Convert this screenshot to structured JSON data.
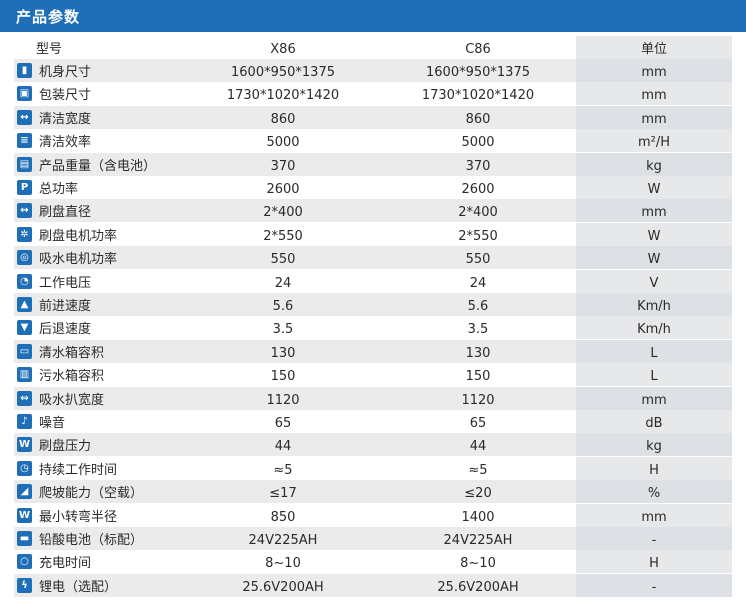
{
  "header": {
    "title": "产品参数"
  },
  "columns": {
    "name": "型号",
    "x86": "X86",
    "c86": "C86",
    "unit": "单位"
  },
  "rows": [
    {
      "icon": "height-icon",
      "glyph": "▮",
      "name": "机身尺寸",
      "x86": "1600*950*1375",
      "c86": "1600*950*1375",
      "unit": "mm"
    },
    {
      "icon": "package-icon",
      "glyph": "▣",
      "name": "包装尺寸",
      "x86": "1730*1020*1420",
      "c86": "1730*1020*1420",
      "unit": "mm"
    },
    {
      "icon": "width-icon",
      "glyph": "↔",
      "name": "清洁宽度",
      "x86": "860",
      "c86": "860",
      "unit": "mm"
    },
    {
      "icon": "efficiency-icon",
      "glyph": "≡",
      "name": "清洁效率",
      "x86": "5000",
      "c86": "5000",
      "unit": "m²/H"
    },
    {
      "icon": "weight-icon",
      "glyph": "▤",
      "name": "产品重量（含电池）",
      "x86": "370",
      "c86": "370",
      "unit": "kg"
    },
    {
      "icon": "power-icon",
      "glyph": "P",
      "name": "总功率",
      "x86": "2600",
      "c86": "2600",
      "unit": "W"
    },
    {
      "icon": "diameter-icon",
      "glyph": "↔",
      "name": "刷盘直径",
      "x86": "2*400",
      "c86": "2*400",
      "unit": "mm"
    },
    {
      "icon": "brush-motor-icon",
      "glyph": "✲",
      "name": "刷盘电机功率",
      "x86": "2*550",
      "c86": "2*550",
      "unit": "W"
    },
    {
      "icon": "suction-motor-icon",
      "glyph": "◎",
      "name": "吸水电机功率",
      "x86": "550",
      "c86": "550",
      "unit": "W"
    },
    {
      "icon": "voltage-icon",
      "glyph": "◔",
      "name": "工作电压",
      "x86": "24",
      "c86": "24",
      "unit": "V"
    },
    {
      "icon": "forward-speed-icon",
      "glyph": "▲",
      "name": "前进速度",
      "x86": "5.6",
      "c86": "5.6",
      "unit": "Km/h"
    },
    {
      "icon": "reverse-speed-icon",
      "glyph": "▼",
      "name": "后退速度",
      "x86": "3.5",
      "c86": "3.5",
      "unit": "Km/h"
    },
    {
      "icon": "clean-tank-icon",
      "glyph": "▭",
      "name": "清水箱容积",
      "x86": "130",
      "c86": "130",
      "unit": "L"
    },
    {
      "icon": "dirty-tank-icon",
      "glyph": "▥",
      "name": "污水箱容积",
      "x86": "150",
      "c86": "150",
      "unit": "L"
    },
    {
      "icon": "squeegee-width-icon",
      "glyph": "⇔",
      "name": "吸水扒宽度",
      "x86": "1120",
      "c86": "1120",
      "unit": "mm"
    },
    {
      "icon": "noise-icon",
      "glyph": "♪",
      "name": "噪音",
      "x86": "65",
      "c86": "65",
      "unit": "dB"
    },
    {
      "icon": "brush-pressure-icon",
      "glyph": "W",
      "name": "刷盘压力",
      "x86": "44",
      "c86": "44",
      "unit": "kg"
    },
    {
      "icon": "clock-icon",
      "glyph": "◷",
      "name": "持续工作时间",
      "x86": "≈5",
      "c86": "≈5",
      "unit": "H"
    },
    {
      "icon": "slope-icon",
      "glyph": "◢",
      "name": "爬坡能力（空载）",
      "x86": "≤17",
      "c86": "≤20",
      "unit": "%"
    },
    {
      "icon": "turning-radius-icon",
      "glyph": "W",
      "name": "最小转弯半径",
      "x86": "850",
      "c86": "1400",
      "unit": "mm"
    },
    {
      "icon": "battery-icon",
      "glyph": "▬",
      "name": "铅酸电池（标配）",
      "x86": "24V225AH",
      "c86": "24V225AH",
      "unit": "-"
    },
    {
      "icon": "charging-time-icon",
      "glyph": "○",
      "name": "充电时间",
      "x86": "8~10",
      "c86": "8~10",
      "unit": "H"
    },
    {
      "icon": "lithium-icon",
      "glyph": "ϟ",
      "name": "锂电（选配）",
      "x86": "25.6V200AH",
      "c86": "25.6V200AH",
      "unit": "-"
    }
  ]
}
